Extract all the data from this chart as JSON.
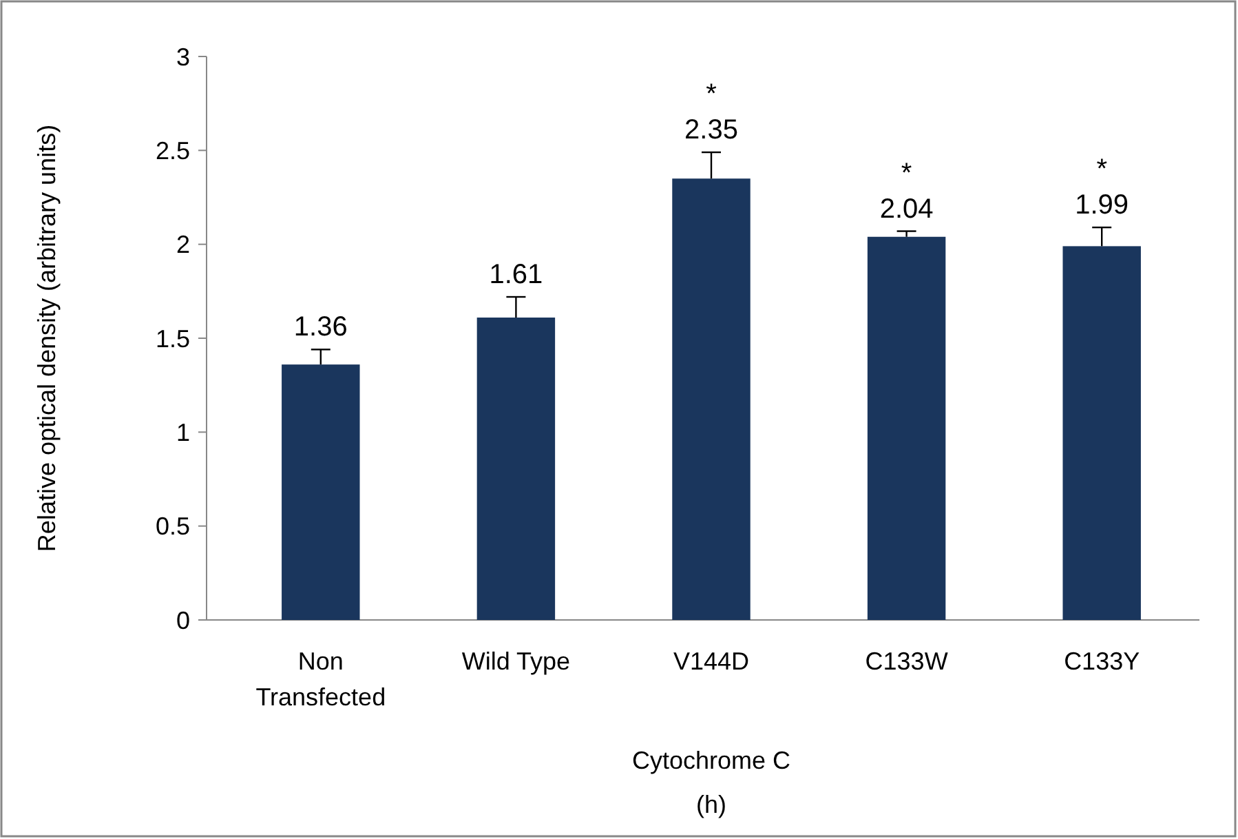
{
  "chart_data": {
    "type": "bar",
    "xlabel": "Cytochrome C",
    "ylabel": "Relative optical density (arbitrary units)",
    "categories": [
      "Non Transfected",
      "Wild Type",
      "V144D",
      "C133W",
      "C133Y"
    ],
    "values": [
      1.36,
      1.61,
      2.35,
      2.04,
      1.99
    ],
    "color": "#1a365d",
    "errors": [
      [
        1.36,
        1.44
      ],
      [
        1.61,
        1.72
      ],
      [
        2.35,
        2.49
      ],
      [
        2.04,
        2.07
      ],
      [
        1.99,
        2.09
      ]
    ],
    "data_labels": true,
    "ylim": [
      0,
      3
    ],
    "yticks": [
      0,
      {
        "value": 0.5,
        "label": "0.5"
      },
      1,
      {
        "value": 1.5,
        "label": "1.5"
      },
      2,
      {
        "value": 2.5,
        "label": "2.5"
      },
      3
    ],
    "grid": false,
    "annotations": [
      "*",
      "*",
      "*",
      "(h)"
    ]
  }
}
